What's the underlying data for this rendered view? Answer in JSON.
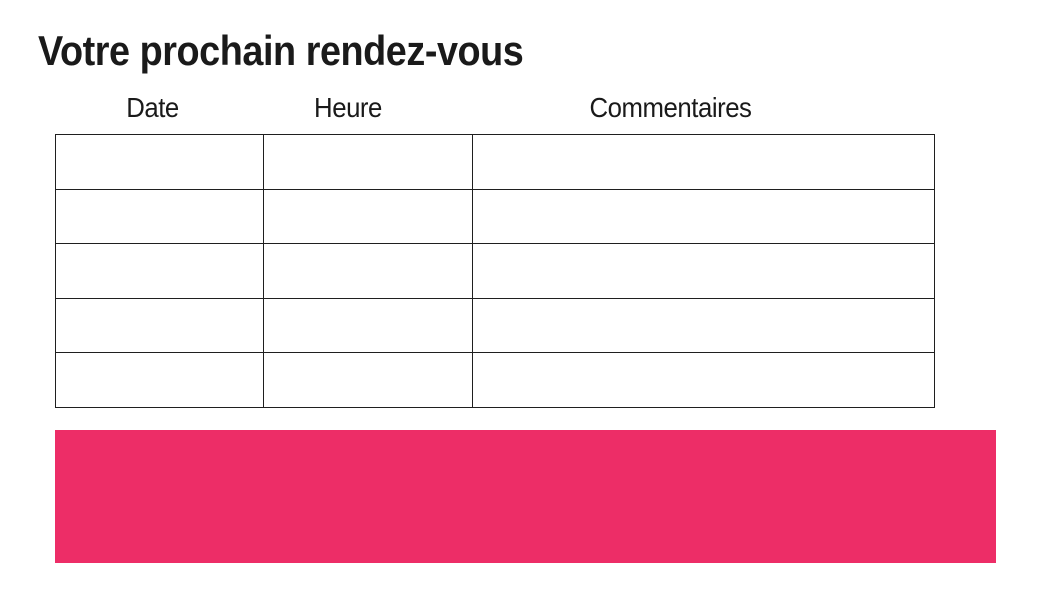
{
  "title": "Votre prochain rendez-vous",
  "table": {
    "headers": [
      "Date",
      "Heure",
      "Commentaires"
    ],
    "rows": [
      [
        "",
        "",
        ""
      ],
      [
        "",
        "",
        ""
      ],
      [
        "",
        "",
        ""
      ],
      [
        "",
        "",
        ""
      ],
      [
        "",
        "",
        ""
      ]
    ]
  },
  "banner": {
    "text": "",
    "color": "#ED2D67"
  },
  "colors": {
    "text": "#1A1A1A",
    "table_border": "#1F1F1F",
    "background": "#FFFFFF"
  }
}
